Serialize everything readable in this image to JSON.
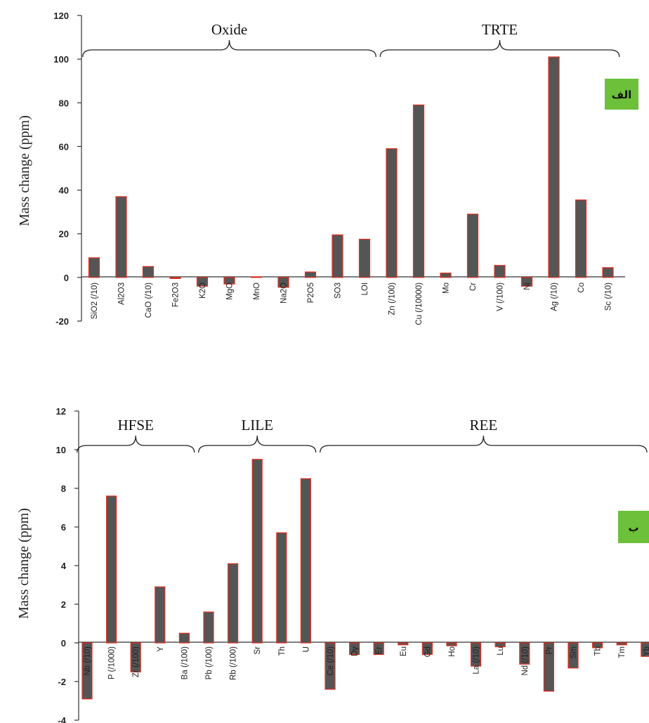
{
  "colors": {
    "bar_fill": "#555555",
    "bar_stroke": "#e03020",
    "axis": "#333333",
    "badge": "#6cc03a"
  },
  "chart_data": [
    {
      "type": "bar",
      "title": "",
      "xlabel": "",
      "ylabel": "Mass change (ppm)",
      "ylim": [
        -20,
        120
      ],
      "yticks": [
        "-20",
        "0",
        "20",
        "40",
        "60",
        "80",
        "100",
        "120"
      ],
      "categories": [
        "SiO2 (/10)",
        "Al2O3",
        "CaO (/10)",
        "Fe2O3",
        "K2O",
        "MgO",
        "MnO",
        "Na2O",
        "P2O5",
        "SO3",
        "LOI",
        "Zn (/100)",
        "Cu (/10000)",
        "Mo",
        "Cr",
        "V (/100)",
        "Ni",
        "Ag (/10)",
        "Co",
        "Sc (/10)"
      ],
      "values": [
        9,
        37,
        5,
        -0.5,
        -4,
        -3,
        0.3,
        -4.5,
        2.5,
        19.5,
        17.5,
        59,
        79,
        2,
        29,
        5.5,
        -4,
        101,
        35.5,
        4.5
      ],
      "groups": [
        {
          "label": "Oxide",
          "start": 0,
          "end": 10
        },
        {
          "label": "TRTE",
          "start": 11,
          "end": 19
        }
      ],
      "badge": "الف"
    },
    {
      "type": "bar",
      "title": "",
      "xlabel": "",
      "ylabel": "Mass change (ppm)",
      "ylim": [
        -4,
        12
      ],
      "yticks": [
        "-4",
        "-2",
        "0",
        "2",
        "4",
        "6",
        "8",
        "10",
        "12"
      ],
      "categories": [
        "Nb (/10)",
        "P (/1000)",
        "Zr (/100)",
        "Y",
        "Ba (/100)",
        "Pb (/100)",
        "Rb (/100)",
        "Sr",
        "Th",
        "U",
        "Ce (/10)",
        "Dy",
        "Er",
        "Eu",
        "Gd",
        "Ho",
        "La (/10)",
        "Lu",
        "Nd (/10)",
        "Pr",
        "Sm",
        "Tb",
        "Tm",
        "Yb"
      ],
      "values": [
        -2.9,
        7.6,
        -1.5,
        2.9,
        0.5,
        1.6,
        4.1,
        9.5,
        5.7,
        8.5,
        -2.4,
        -0.6,
        -0.6,
        -0.1,
        -0.6,
        -0.15,
        -1.2,
        -0.2,
        -1.1,
        -2.5,
        -1.3,
        -0.25,
        -0.1,
        -0.7
      ],
      "groups": [
        {
          "label": "HFSE",
          "start": 0,
          "end": 4
        },
        {
          "label": "LILE",
          "start": 5,
          "end": 9
        },
        {
          "label": "REE",
          "start": 10,
          "end": 23
        }
      ],
      "badge": "ب"
    }
  ]
}
